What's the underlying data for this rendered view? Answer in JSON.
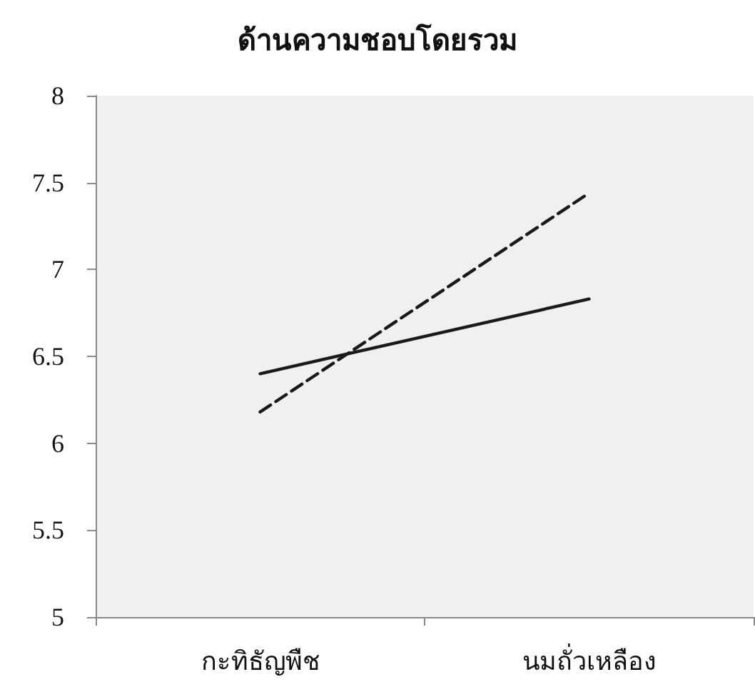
{
  "chart_data": {
    "type": "line",
    "title": "ด้านความชอบโดยรวม",
    "categories": [
      "กะทิธัญพืช",
      "นมถั่วเหลือง"
    ],
    "series": [
      {
        "color": "#1a1a1a",
        "values": [
          6.4,
          6.83
        ],
        "line_style": "solid"
      },
      {
        "color": "#1a1a1a",
        "values": [
          6.18,
          7.44
        ],
        "line_style": "dashed"
      }
    ],
    "ylim": [
      5,
      8
    ],
    "yticks": [
      5,
      5.5,
      6,
      6.5,
      7,
      7.5,
      8
    ],
    "grid": false,
    "marker": "none"
  }
}
